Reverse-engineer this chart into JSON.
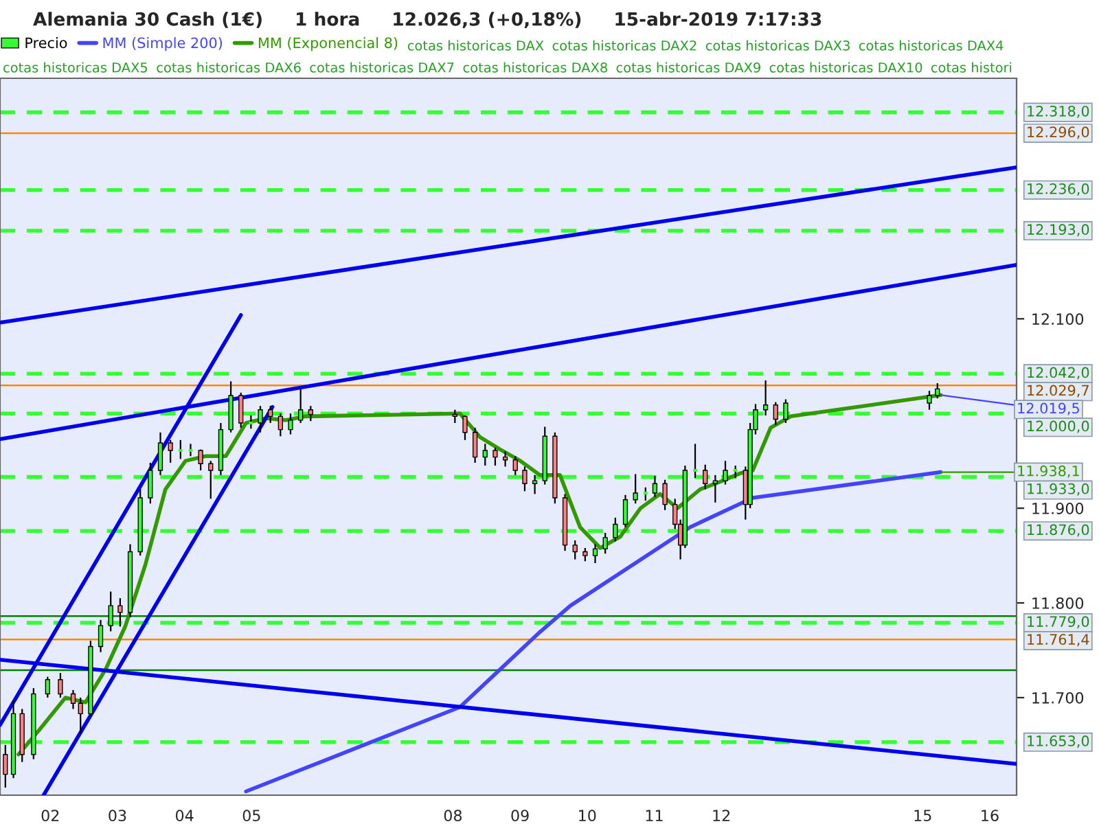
{
  "chart_data": {
    "type": "candlestick",
    "title": "Alemania 30 Cash (1€)     1 hora     12.026,3 (+0,18%)     15-abr-2019 7:17:33",
    "series": [
      {
        "name": "Precio",
        "colors": [
          "#ff8080",
          "#33ff33",
          "#ff8080",
          "#33ff33",
          "#33ff33",
          "#ff8080",
          "#ff8080",
          "#ff8080",
          "#33ff33",
          "#33ff33",
          "#33ff33",
          "#ff8080",
          "#33ff33",
          "#33ff33",
          "#33ff33",
          "#33ff33",
          "#ff8080",
          "#33ff33",
          "#33ff33",
          "#ff8080",
          "#ff8080",
          "#33ff33",
          "#33ff33",
          "#ff8080",
          "#33ff33",
          "#33ff33",
          "#ff8080",
          "#ff8080",
          "#33ff33",
          "#33ff33",
          "#ff8080",
          "#ff8080",
          "#ff8080",
          "#ff8080",
          "#33ff33",
          "#ff8080",
          "#ff8080",
          "#ff8080",
          "#ff8080",
          "#33ff33",
          "#33ff33",
          "#ff8080",
          "#ff8080",
          "#ff8080",
          "#ff8080",
          "#33ff33",
          "#33ff33",
          "#33ff33",
          "#33ff33",
          "#33ff33",
          "#33ff33",
          "#33ff33",
          "#ff8080",
          "#ff8080",
          "#ff8080",
          "#33ff33",
          "#33ff33",
          "#ff8080",
          "#33ff33",
          "#33ff33",
          "#33ff33",
          "#ff8080",
          "#33ff33",
          "#33ff33",
          "#33ff33",
          "#ff8080",
          "#33ff33",
          "#33ff33",
          "#33ff33"
        ],
        "x": [
          "2019-04-01T07:55",
          "2019-04-01T10:48",
          "2019-04-01T13:55",
          "2019-04-01T18:00",
          "2019-04-01T23:02",
          "2019-04-02T03:36",
          "2019-04-02T08:10",
          "2019-04-02T10:48",
          "2019-04-02T14:24",
          "2019-04-02T18:00",
          "2019-04-02T21:36",
          "2019-04-03T00:58",
          "2019-04-03T04:34",
          "2019-04-03T08:10",
          "2019-04-03T11:46",
          "2019-04-03T15:22",
          "2019-04-03T18:58",
          "2019-04-03T22:34",
          "2019-04-04T02:10",
          "2019-04-04T05:46",
          "2019-04-04T09:22",
          "2019-04-04T12:58",
          "2019-04-04T16:34",
          "2019-04-04T20:10",
          "2019-04-04T23:46",
          "2019-04-05T03:07",
          "2019-04-05T06:43",
          "2019-04-05T10:19",
          "2019-04-05T13:55",
          "2019-04-05T17:31",
          "2019-04-05T21:07",
          "2019-04-08T00:43",
          "2019-04-08T04:19",
          "2019-04-08T07:55",
          "2019-04-08T11:31",
          "2019-04-08T15:07",
          "2019-04-08T18:43",
          "2019-04-08T22:19",
          "2019-04-09T01:41",
          "2019-04-09T05:17",
          "2019-04-09T08:53",
          "2019-04-09T12:29",
          "2019-04-09T16:05",
          "2019-04-09T19:41",
          "2019-04-09T23:17",
          "2019-04-10T02:53",
          "2019-04-10T06:29",
          "2019-04-10T10:05",
          "2019-04-10T13:41",
          "2019-04-10T17:17",
          "2019-04-10T20:53",
          "2019-04-11T00:14",
          "2019-04-11T03:50",
          "2019-04-11T07:26",
          "2019-04-11T09:22",
          "2019-04-11T11:02",
          "2019-04-11T14:38",
          "2019-04-11T18:14",
          "2019-04-11T21:50",
          "2019-04-12T01:26",
          "2019-04-12T05:02",
          "2019-04-12T08:38",
          "2019-04-12T10:19",
          "2019-04-12T12:14",
          "2019-04-12T15:50",
          "2019-04-12T19:26",
          "2019-04-12T23:02",
          "2019-04-15T02:24",
          "2019-04-15T05:17"
        ],
        "ohlc": [
          [
            11640,
            11650,
            11605,
            11619
          ],
          [
            11619,
            11697,
            11615,
            11683
          ],
          [
            11683,
            11688,
            11632,
            11640
          ],
          [
            11640,
            11710,
            11635,
            11704
          ],
          [
            11704,
            11722,
            11700,
            11719
          ],
          [
            11719,
            11726,
            11700,
            11704
          ],
          [
            11704,
            11708,
            11688,
            11694
          ],
          [
            11694,
            11700,
            11662,
            11683
          ],
          [
            11683,
            11760,
            11680,
            11754
          ],
          [
            11754,
            11782,
            11748,
            11776
          ],
          [
            11776,
            11812,
            11770,
            11797
          ],
          [
            11797,
            11805,
            11775,
            11790
          ],
          [
            11790,
            11862,
            11785,
            11854
          ],
          [
            11854,
            11920,
            11850,
            11911
          ],
          [
            11911,
            11948,
            11905,
            11940
          ],
          [
            11940,
            11980,
            11935,
            11969
          ],
          [
            11969,
            11972,
            11948,
            11961
          ],
          [
            11961,
            11972,
            11952,
            11961
          ],
          [
            11961,
            11968,
            11955,
            11961
          ],
          [
            11961,
            11962,
            11940,
            11947
          ],
          [
            11947,
            11950,
            11910,
            11940
          ],
          [
            11940,
            11990,
            11935,
            11983
          ],
          [
            11983,
            12034,
            11980,
            12019
          ],
          [
            12019,
            12022,
            11985,
            11990
          ],
          [
            11990,
            11998,
            11984,
            11990
          ],
          [
            11990,
            12008,
            11980,
            12004
          ],
          [
            12004,
            12008,
            11990,
            11997
          ],
          [
            11997,
            12000,
            11976,
            11983
          ],
          [
            11983,
            12000,
            11978,
            11993
          ],
          [
            11993,
            12026,
            11990,
            12004
          ],
          [
            12004,
            12008,
            11992,
            11999
          ],
          [
            11999,
            12004,
            11990,
            11997
          ],
          [
            11997,
            11998,
            11972,
            11980
          ],
          [
            11980,
            11985,
            11948,
            11954
          ],
          [
            11954,
            11968,
            11945,
            11961
          ],
          [
            11961,
            11964,
            11945,
            11954
          ],
          [
            11954,
            11960,
            11944,
            11951
          ],
          [
            11951,
            11955,
            11935,
            11940
          ],
          [
            11940,
            11944,
            11918,
            11926
          ],
          [
            11926,
            11935,
            11915,
            11929
          ],
          [
            11929,
            11986,
            11925,
            11976
          ],
          [
            11976,
            11980,
            11905,
            11911
          ],
          [
            11911,
            11915,
            11855,
            11861
          ],
          [
            11861,
            11866,
            11846,
            11854
          ],
          [
            11854,
            11858,
            11844,
            11850
          ],
          [
            11850,
            11862,
            11842,
            11857
          ],
          [
            11857,
            11874,
            11852,
            11869
          ],
          [
            11869,
            11890,
            11865,
            11883
          ],
          [
            11883,
            11914,
            11880,
            11909
          ],
          [
            11909,
            11936,
            11905,
            11916
          ],
          [
            11916,
            11922,
            11908,
            11916
          ],
          [
            11916,
            11934,
            11912,
            11926
          ],
          [
            11926,
            11930,
            11898,
            11904
          ],
          [
            11904,
            11910,
            11878,
            11883
          ],
          [
            11883,
            11888,
            11846,
            11861
          ],
          [
            11861,
            11945,
            11858,
            11940
          ],
          [
            11940,
            11968,
            11932,
            11940
          ],
          [
            11940,
            11946,
            11920,
            11926
          ],
          [
            11926,
            11935,
            11906,
            11929
          ],
          [
            11929,
            11950,
            11925,
            11940
          ],
          [
            11940,
            11945,
            11932,
            11940
          ],
          [
            11940,
            11944,
            11888,
            11904
          ],
          [
            11904,
            11990,
            11900,
            11983
          ],
          [
            11983,
            12010,
            11978,
            12004
          ],
          [
            12004,
            12035,
            11998,
            12009
          ],
          [
            12009,
            12012,
            11988,
            11994
          ],
          [
            11994,
            12015,
            11990,
            12011
          ],
          [
            12011,
            12024,
            12004,
            12019
          ],
          [
            12019,
            12032,
            12016,
            12026
          ]
        ]
      },
      {
        "name": "MM (Simple 200)",
        "type": "line",
        "color": "#4444ff",
        "x": [
          "2019-04-04T22:00",
          "2019-04-08T02:30",
          "2019-04-09T07:00",
          "2019-04-09T18:00",
          "2019-04-11T12:50",
          "2019-04-12T11:15",
          "2019-04-15T06:30"
        ],
        "values": [
          11601,
          11690,
          11769,
          11797,
          11880,
          11911,
          11938.1
        ]
      },
      {
        "name": "MM (Exponencial 8)",
        "type": "line",
        "color": "#339900",
        "x": [
          "2019-04-01T12:36",
          "2019-04-01T19:48",
          "2019-04-02T05:24",
          "2019-04-02T12:36",
          "2019-04-02T19:48",
          "2019-04-03T02:46",
          "2019-04-03T09:58",
          "2019-04-03T17:10",
          "2019-04-04T00:22",
          "2019-04-04T07:34",
          "2019-04-04T14:46",
          "2019-04-04T21:58",
          "2019-04-05T04:55",
          "2019-04-05T12:07",
          "2019-04-05T19:19",
          "2019-04-08T02:31",
          "2019-04-08T09:43",
          "2019-04-08T16:55",
          "2019-04-09T00:07",
          "2019-04-09T07:05",
          "2019-04-09T14:17",
          "2019-04-09T21:29",
          "2019-04-10T04:41",
          "2019-04-10T11:53",
          "2019-04-10T19:05",
          "2019-04-11T02:02",
          "2019-04-11T08:20",
          "2019-04-11T16:26",
          "2019-04-11T23:38",
          "2019-04-12T06:50",
          "2019-04-12T11:15",
          "2019-04-12T17:38",
          "2019-04-13T00:50",
          "2019-04-15T06:30"
        ],
        "values": [
          11640,
          11665,
          11700,
          11695,
          11730,
          11775,
          11840,
          11920,
          11950,
          11955,
          11955,
          11990,
          11995,
          11993,
          11997,
          12000,
          11975,
          11962,
          11950,
          11935,
          11935,
          11880,
          11858,
          11870,
          11900,
          11915,
          11900,
          11920,
          11928,
          11937,
          11940,
          11985,
          11997,
          12019.5
        ]
      },
      {
        "type": "line",
        "color": "#0000ee",
        "x": [
          "2019-04-01T06:00",
          "2019-04-16T09:36"
        ],
        "values": [
          12096,
          12260
        ]
      },
      {
        "type": "line",
        "color": "#0000ee",
        "x": [
          "2019-04-01T06:00",
          "2019-04-16T09:36"
        ],
        "values": [
          11973,
          12157
        ]
      },
      {
        "type": "line",
        "color": "#0000ee",
        "x": [
          "2019-04-01T06:00",
          "2019-04-04T20:10"
        ],
        "values": [
          11671,
          12104
        ]
      },
      {
        "type": "line",
        "color": "#0000ee",
        "x": [
          "2019-04-01T21:36",
          "2019-04-05T07:26"
        ],
        "values": [
          11597,
          12007
        ]
      },
      {
        "type": "line",
        "color": "#0000ee",
        "x": [
          "2019-04-01T06:00",
          "2019-04-16T09:36"
        ],
        "values": [
          11740,
          11630
        ]
      }
    ],
    "xlim": [
      "2019-04-01T06:00",
      "2019-04-16T09:36"
    ],
    "xticks": [
      {
        "value": "2019-04-02",
        "label": "02"
      },
      {
        "value": "2019-04-03",
        "label": "03"
      },
      {
        "value": "2019-04-04",
        "label": "04"
      },
      {
        "value": "2019-04-05",
        "label": "05"
      },
      {
        "value": "2019-04-08",
        "label": "08"
      },
      {
        "value": "2019-04-09",
        "label": "09"
      },
      {
        "value": "2019-04-10",
        "label": "10"
      },
      {
        "value": "2019-04-11",
        "label": "11"
      },
      {
        "value": "2019-04-12",
        "label": "12"
      },
      {
        "value": "2019-04-15",
        "label": "15"
      },
      {
        "value": "2019-04-16",
        "label": "16"
      }
    ],
    "ylim": [
      11597,
      12354
    ],
    "yticks": [
      {
        "value": 11700,
        "label": "11.700"
      },
      {
        "value": 11800,
        "label": "11.800"
      },
      {
        "value": 11900,
        "label": "11.900"
      },
      {
        "value": 12100,
        "label": "12.100"
      }
    ],
    "ref_lines": [
      {
        "axis": "y",
        "value": 12318,
        "label": "12.318,0",
        "color": "#33ff33",
        "line_style": "dashed"
      },
      {
        "axis": "y",
        "value": 12296,
        "label": "12.296,0",
        "color": "#ff8800",
        "line_style": "solid"
      },
      {
        "axis": "y",
        "value": 12236,
        "label": "12.236,0",
        "color": "#33ff33",
        "line_style": "dashed"
      },
      {
        "axis": "y",
        "value": 12193,
        "label": "12.193,0",
        "color": "#33ff33",
        "line_style": "dashed"
      },
      {
        "axis": "y",
        "value": 12042,
        "label": "12.042,0",
        "color": "#33ff33",
        "line_style": "dashed"
      },
      {
        "axis": "y",
        "value": 12029.7,
        "label": "12.029,7",
        "color": "#ff8800",
        "line_style": "solid"
      },
      {
        "axis": "y",
        "value": 12000,
        "label": "12.000,0",
        "color": "#33ff33",
        "line_style": "dashed"
      },
      {
        "axis": "y",
        "value": 11933,
        "label": "11.933,0",
        "color": "#33ff33",
        "line_style": "dashed"
      },
      {
        "axis": "y",
        "value": 11876,
        "label": "11.876,0",
        "color": "#33ff33",
        "line_style": "dashed"
      },
      {
        "axis": "y",
        "value": 11786,
        "color": "#008000",
        "line_style": "solid"
      },
      {
        "axis": "y",
        "value": 11779,
        "label": "11.779,0",
        "color": "#33ff33",
        "line_style": "dashed"
      },
      {
        "axis": "y",
        "value": 11761.4,
        "label": "11.761,4",
        "color": "#ff8800",
        "line_style": "solid"
      },
      {
        "axis": "y",
        "value": 11729,
        "color": "#008000",
        "line_style": "solid"
      },
      {
        "axis": "y",
        "value": 11653,
        "label": "11.653,0",
        "color": "#33ff33",
        "line_style": "dashed"
      }
    ],
    "annotations": [
      {
        "text": "12.019,5",
        "x": "2019-04-15T06:30",
        "y": 12019.5
      },
      {
        "text": "11.938,1",
        "x": "2019-04-15T06:30",
        "y": 11938.1
      },
      "cotas historicas DAX",
      "cotas historicas DAX2",
      "cotas historicas DAX3",
      "cotas historicas DAX4",
      "cotas historicas DAX5",
      "cotas historicas DAX6",
      "cotas historicas DAX7",
      "cotas historicas DAX8",
      "cotas historicas DAX9",
      "cotas historicas DAX10",
      "cotas histori"
    ],
    "legend": "top left",
    "grid": false
  }
}
